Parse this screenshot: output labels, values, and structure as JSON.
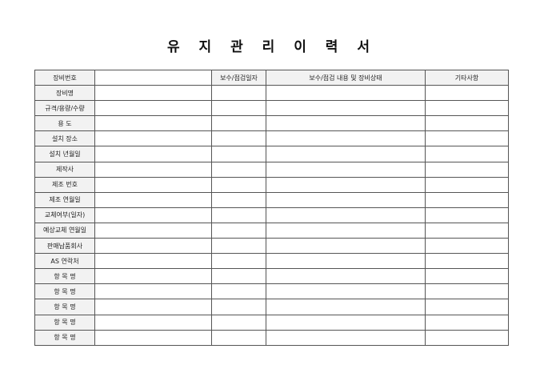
{
  "title": "유 지 관 리 이 력 서",
  "header": {
    "label": "장비번호",
    "col_date": "보수/점검일자",
    "col_content": "보수/점검 내용 및 장비상태",
    "col_note": "기타사항"
  },
  "rows": [
    "장비명",
    "규격/용량/수량",
    "용 도",
    "설치 장소",
    "설치 년월일",
    "제작사",
    "제조 번호",
    "제조 연월일",
    "교체여부(일자)",
    "예상교체 연월일",
    "판매납품회사",
    "AS 연락처",
    "항 목 명",
    "항 목 명",
    "항 목 명",
    "항 목 명",
    "항 목 명"
  ]
}
